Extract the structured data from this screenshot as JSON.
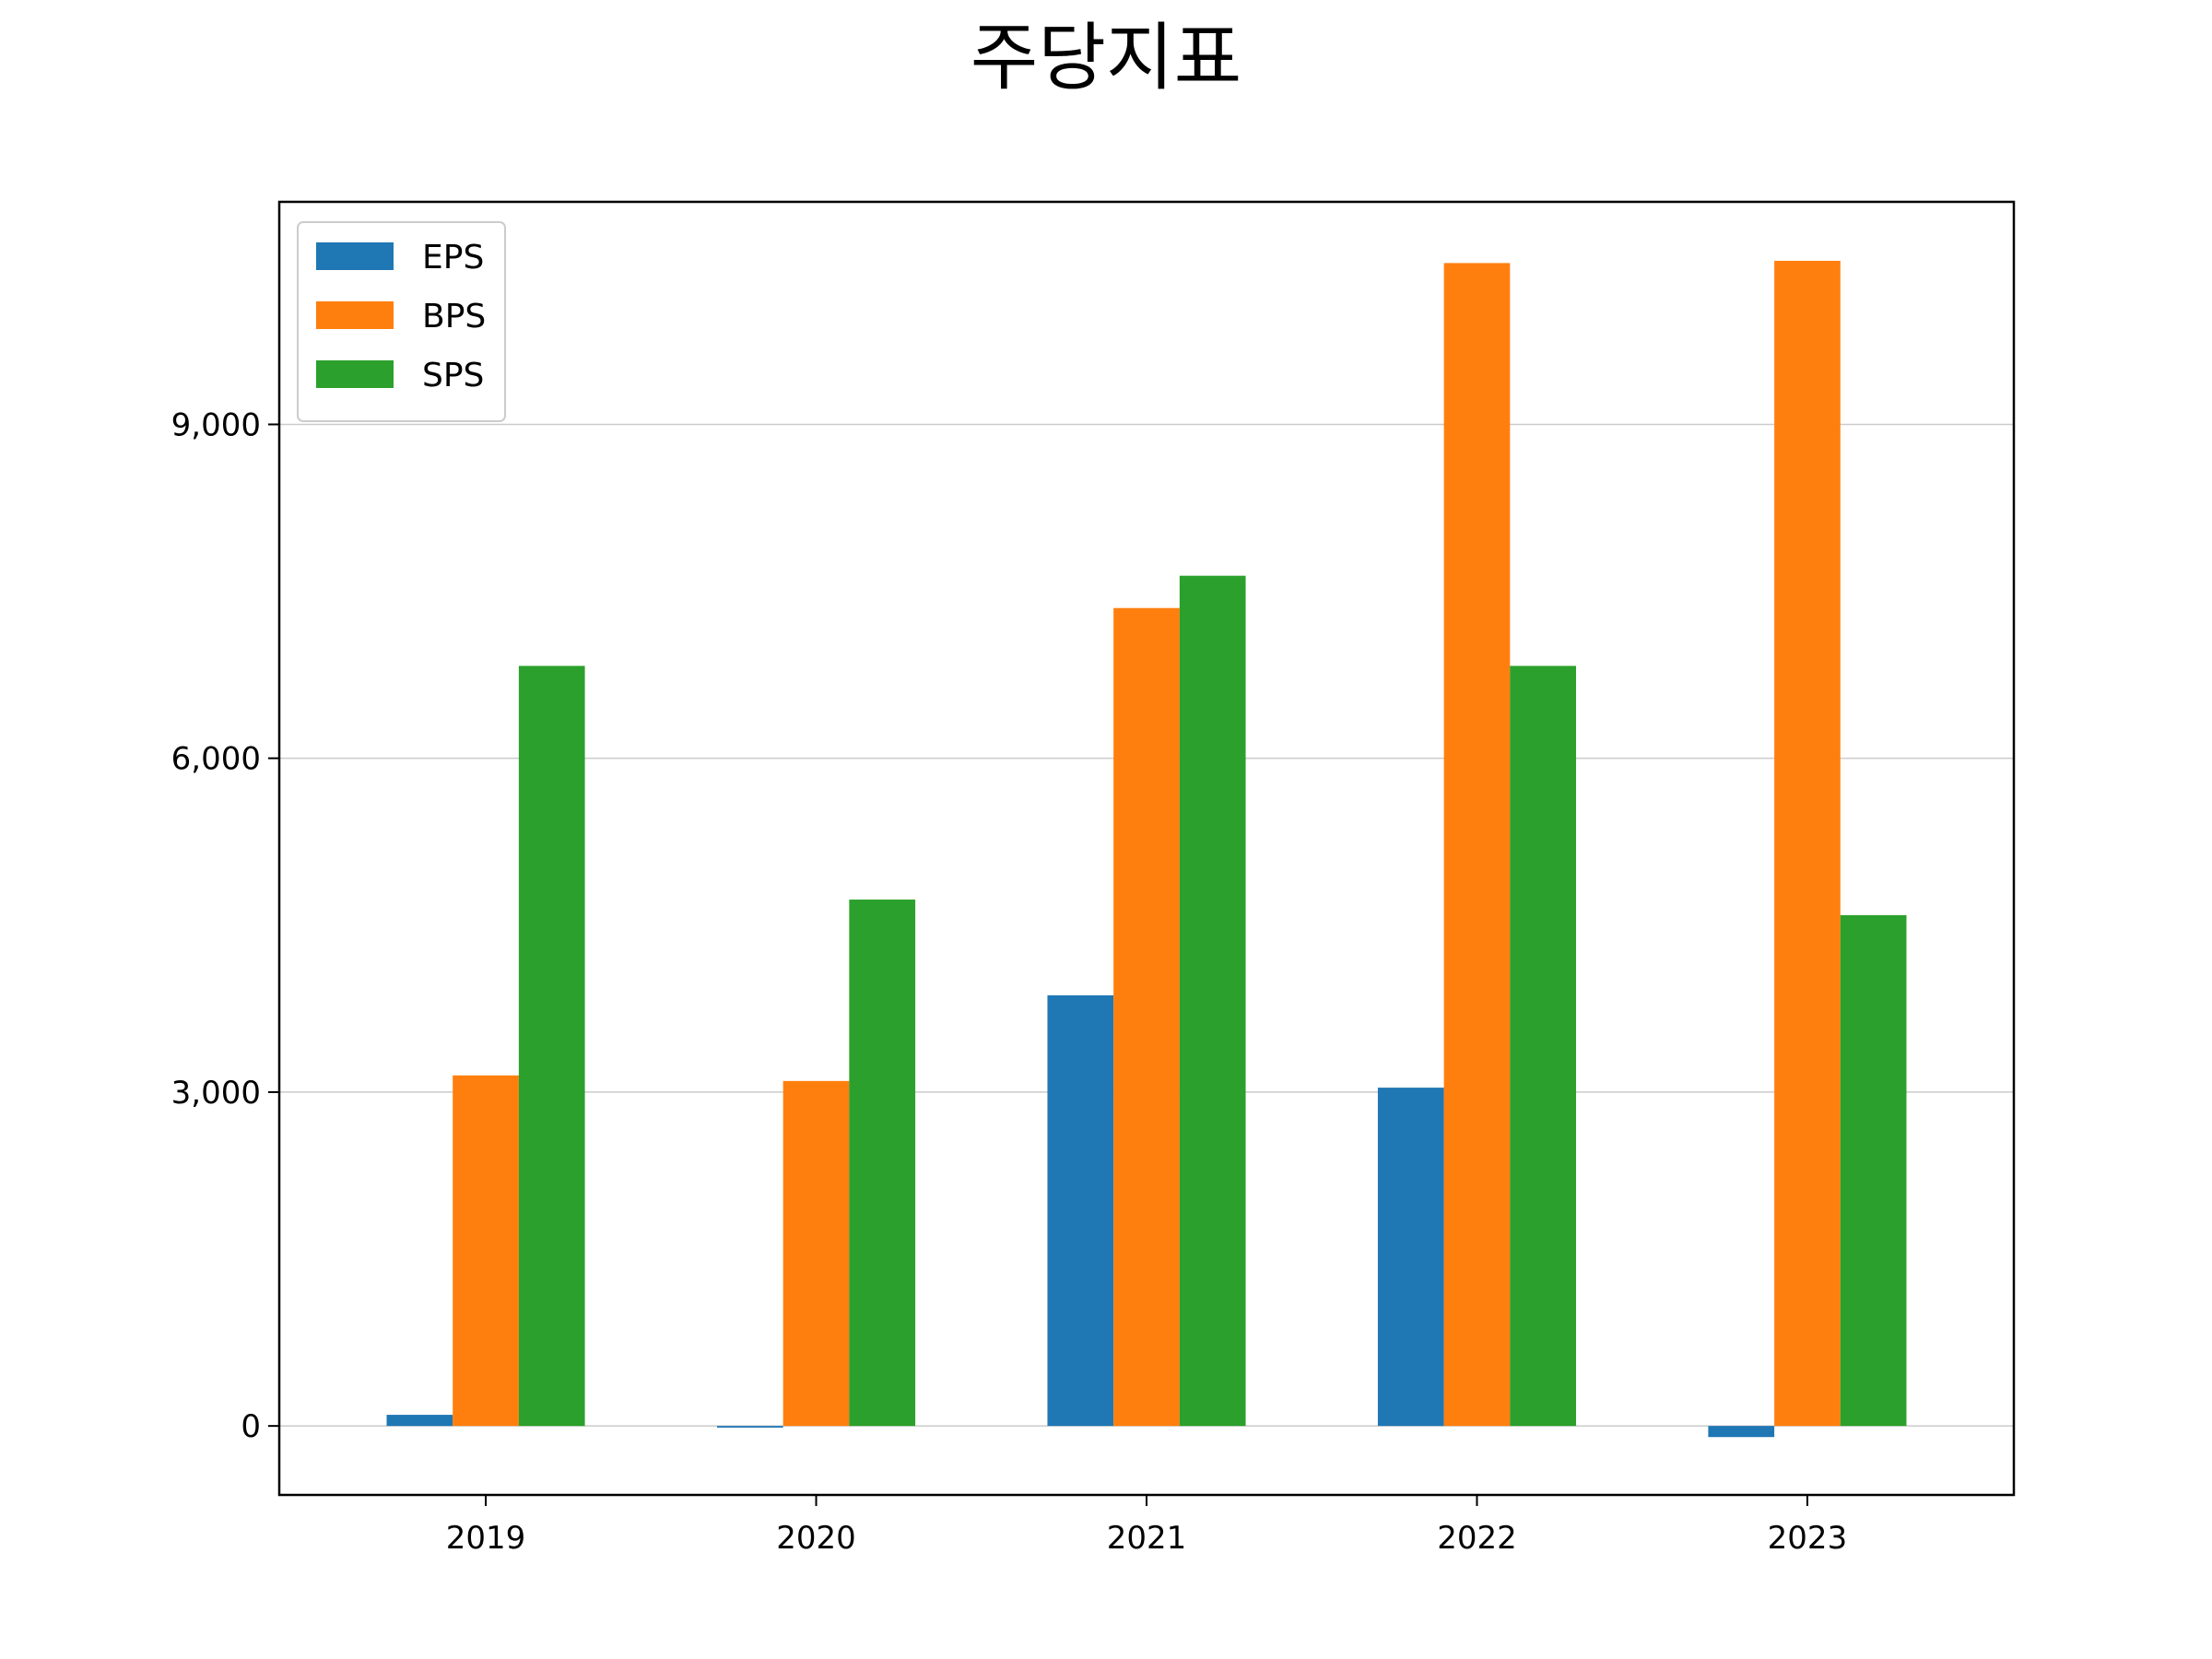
{
  "chart_data": {
    "type": "bar",
    "title": "주당지표",
    "xlabel": "",
    "ylabel": "",
    "categories": [
      "2019",
      "2020",
      "2021",
      "2022",
      "2023"
    ],
    "series": [
      {
        "name": "EPS",
        "color": "#1f77b4",
        "values": [
          100,
          -15,
          3870,
          3040,
          -100
        ]
      },
      {
        "name": "BPS",
        "color": "#ff7f0e",
        "values": [
          3150,
          3100,
          7350,
          10450,
          10470
        ]
      },
      {
        "name": "SPS",
        "color": "#2ca02c",
        "values": [
          6830,
          4730,
          7640,
          6830,
          4590
        ]
      }
    ],
    "ylim": [
      -620,
      11000
    ],
    "yticks": [
      0,
      3000,
      6000,
      9000
    ],
    "ytick_labels": [
      "0",
      "3,000",
      "6,000",
      "9,000"
    ],
    "grid": "y",
    "legend_position": "upper-left"
  }
}
